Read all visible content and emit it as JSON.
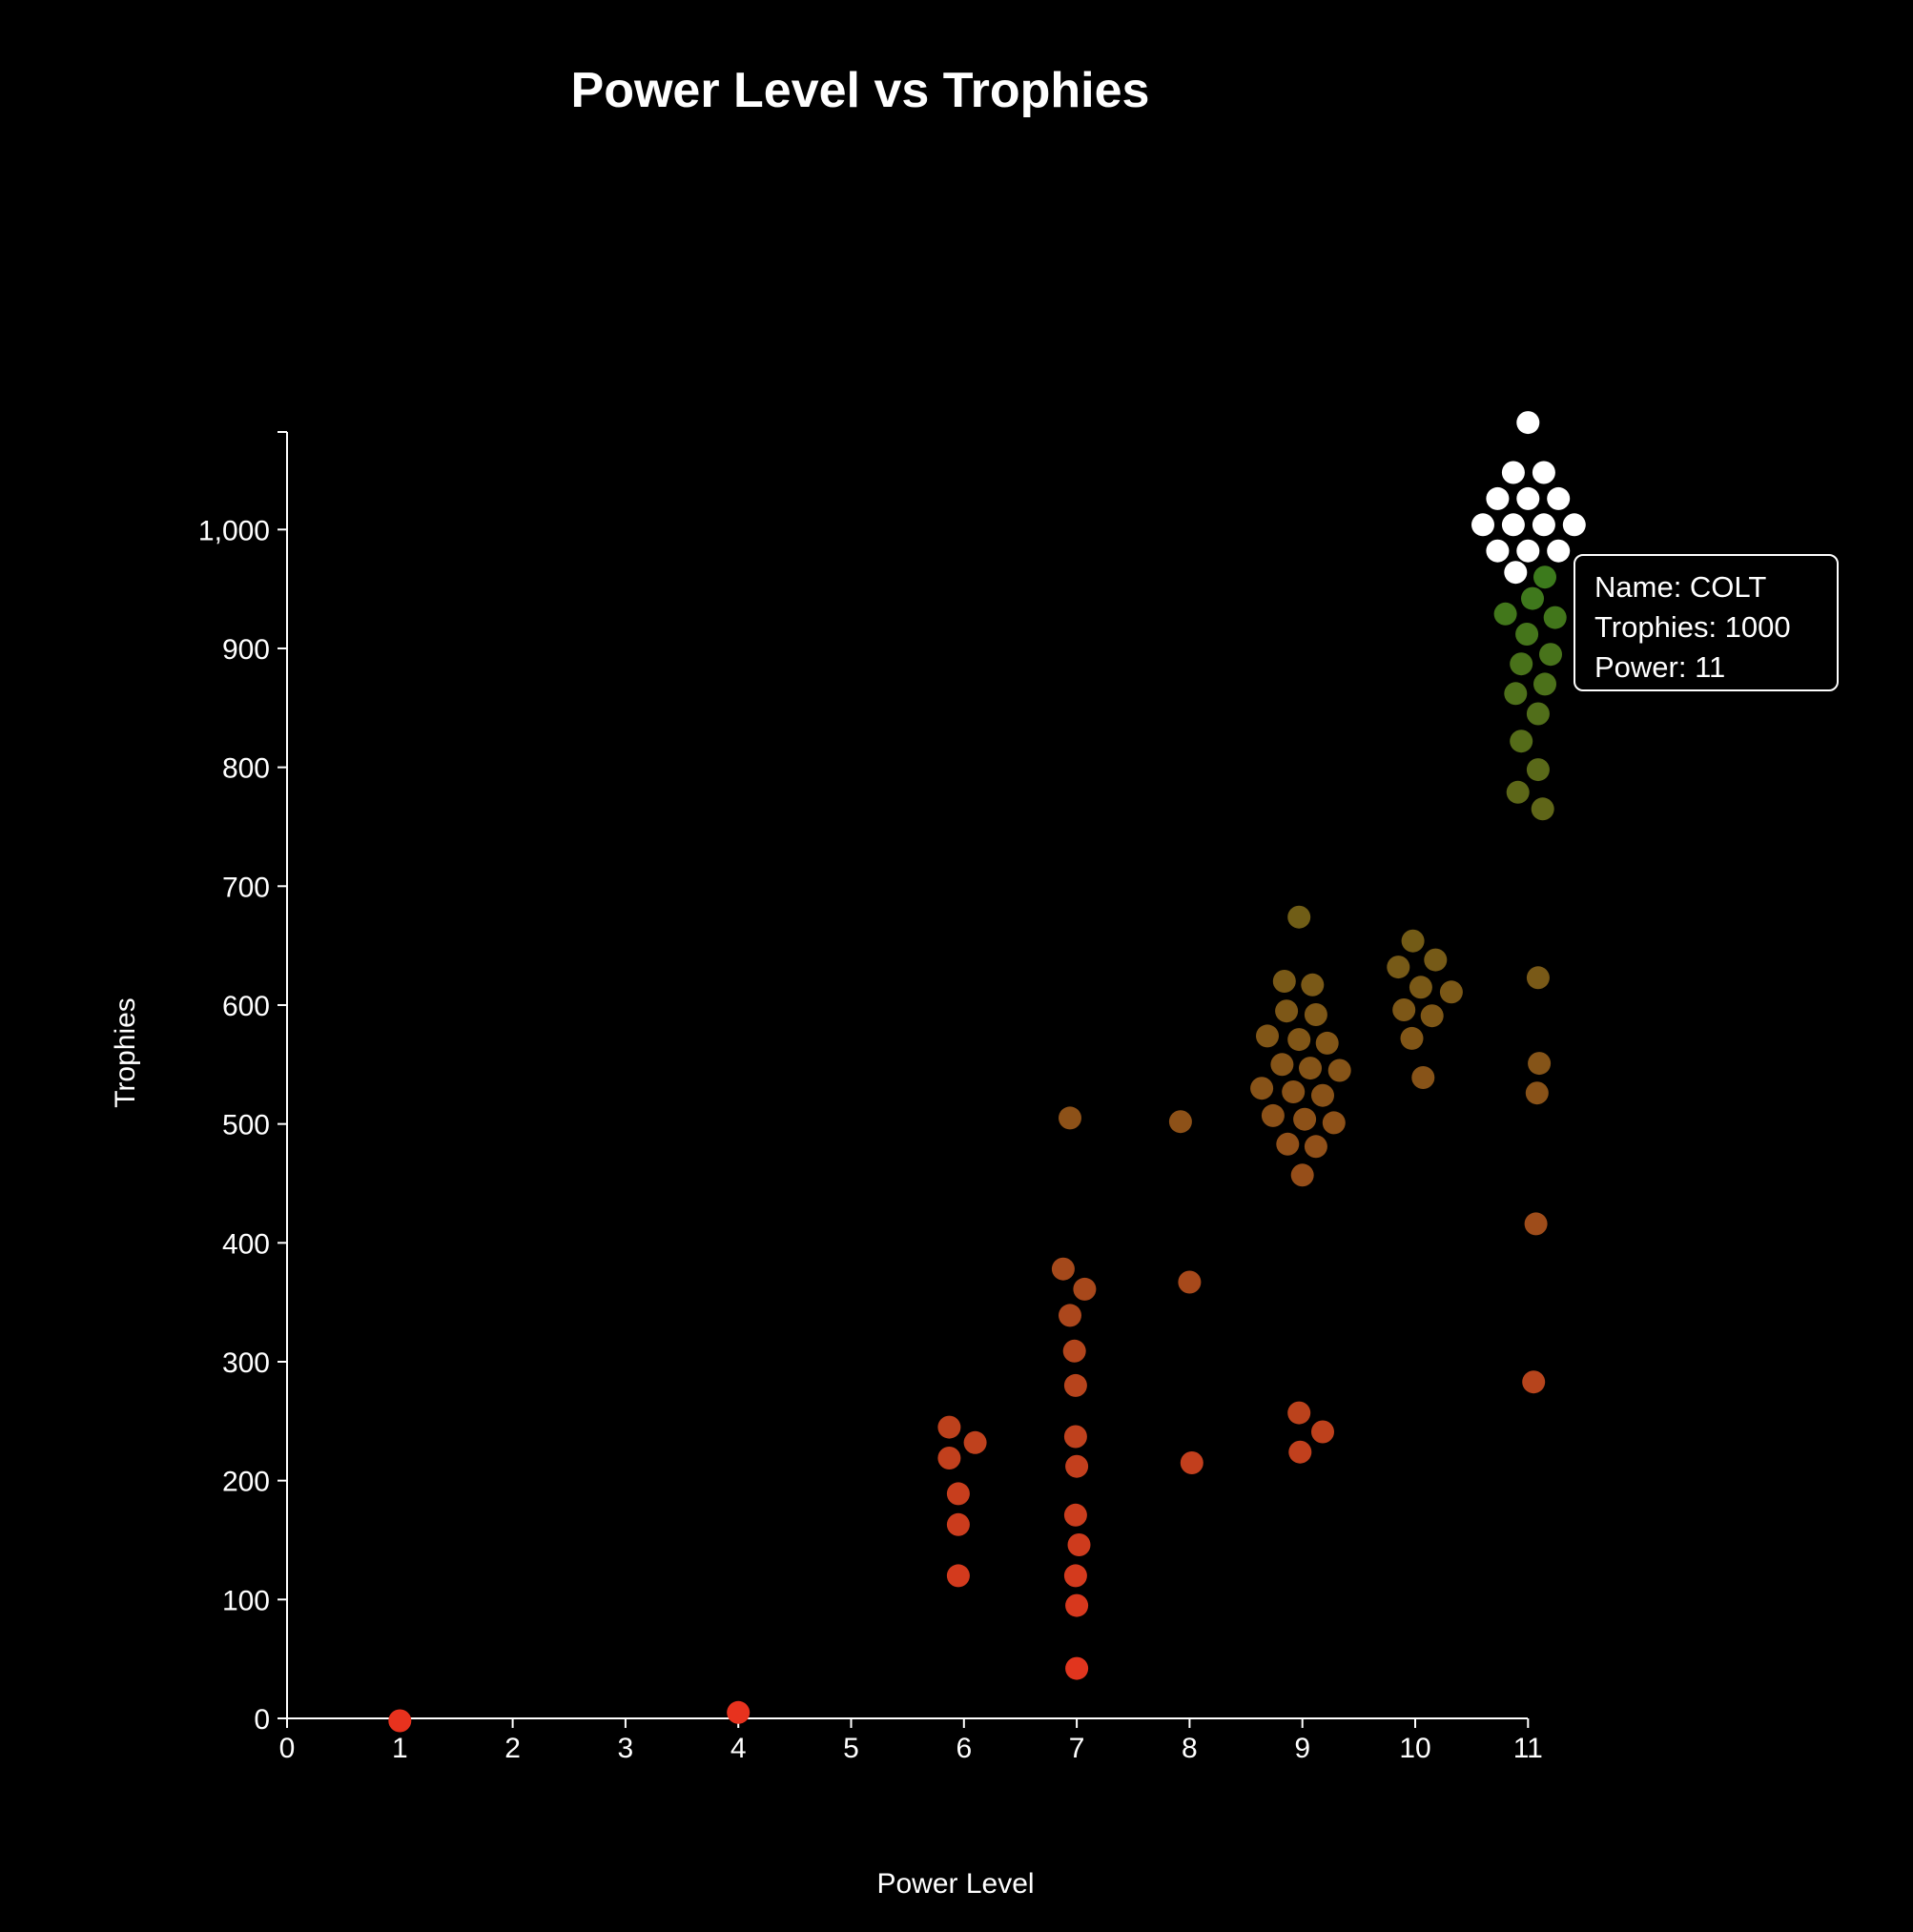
{
  "chart_data": {
    "type": "scatter",
    "title": "Power Level vs Trophies",
    "xlabel": "Power Level",
    "ylabel": "Trophies",
    "xlim": [
      0,
      11
    ],
    "ylim": [
      0,
      1090
    ],
    "x_ticks": [
      "0",
      "1",
      "2",
      "3",
      "4",
      "5",
      "6",
      "7",
      "8",
      "9",
      "10",
      "11"
    ],
    "y_ticks": [
      "0",
      "100",
      "200",
      "300",
      "400",
      "500",
      "600",
      "700",
      "800",
      "900",
      "1,000"
    ],
    "grid": false,
    "color_scale": {
      "low": "#e8321e",
      "mid_low": "#b0461c",
      "mid": "#8a5218",
      "mid_high": "#6f5d16",
      "high": "#3c7a1c",
      "top": "#ffffff"
    },
    "points": [
      {
        "x": 1.0,
        "y": -2
      },
      {
        "x": 4.0,
        "y": 5
      },
      {
        "x": 5.87,
        "y": 245
      },
      {
        "x": 6.1,
        "y": 232
      },
      {
        "x": 5.87,
        "y": 219
      },
      {
        "x": 5.95,
        "y": 189
      },
      {
        "x": 5.95,
        "y": 163
      },
      {
        "x": 5.95,
        "y": 120
      },
      {
        "x": 6.94,
        "y": 505
      },
      {
        "x": 6.88,
        "y": 378
      },
      {
        "x": 7.07,
        "y": 361
      },
      {
        "x": 6.94,
        "y": 339
      },
      {
        "x": 6.98,
        "y": 309
      },
      {
        "x": 6.99,
        "y": 280
      },
      {
        "x": 6.99,
        "y": 237
      },
      {
        "x": 7.0,
        "y": 212
      },
      {
        "x": 6.99,
        "y": 171
      },
      {
        "x": 7.02,
        "y": 146
      },
      {
        "x": 6.99,
        "y": 120
      },
      {
        "x": 7.0,
        "y": 95
      },
      {
        "x": 7.0,
        "y": 42
      },
      {
        "x": 7.92,
        "y": 502
      },
      {
        "x": 8.0,
        "y": 367
      },
      {
        "x": 8.02,
        "y": 215
      },
      {
        "x": 8.97,
        "y": 674
      },
      {
        "x": 8.84,
        "y": 620
      },
      {
        "x": 9.09,
        "y": 617
      },
      {
        "x": 8.86,
        "y": 595
      },
      {
        "x": 9.12,
        "y": 592
      },
      {
        "x": 8.69,
        "y": 574
      },
      {
        "x": 8.97,
        "y": 571
      },
      {
        "x": 9.22,
        "y": 568
      },
      {
        "x": 8.82,
        "y": 550
      },
      {
        "x": 9.07,
        "y": 547
      },
      {
        "x": 9.33,
        "y": 545
      },
      {
        "x": 8.64,
        "y": 530
      },
      {
        "x": 8.92,
        "y": 527
      },
      {
        "x": 9.18,
        "y": 524
      },
      {
        "x": 8.74,
        "y": 507
      },
      {
        "x": 9.02,
        "y": 504
      },
      {
        "x": 9.28,
        "y": 501
      },
      {
        "x": 8.87,
        "y": 483
      },
      {
        "x": 9.12,
        "y": 481
      },
      {
        "x": 9.0,
        "y": 457
      },
      {
        "x": 8.97,
        "y": 257
      },
      {
        "x": 9.18,
        "y": 241
      },
      {
        "x": 8.98,
        "y": 224
      },
      {
        "x": 9.98,
        "y": 654
      },
      {
        "x": 10.18,
        "y": 638
      },
      {
        "x": 9.85,
        "y": 632
      },
      {
        "x": 10.05,
        "y": 615
      },
      {
        "x": 10.32,
        "y": 611
      },
      {
        "x": 9.9,
        "y": 596
      },
      {
        "x": 10.15,
        "y": 591
      },
      {
        "x": 9.97,
        "y": 572
      },
      {
        "x": 10.07,
        "y": 539
      },
      {
        "x": 11.0,
        "y": 1090
      },
      {
        "x": 10.87,
        "y": 1048
      },
      {
        "x": 11.14,
        "y": 1048
      },
      {
        "x": 10.73,
        "y": 1026
      },
      {
        "x": 11.0,
        "y": 1026
      },
      {
        "x": 11.27,
        "y": 1026
      },
      {
        "x": 10.6,
        "y": 1004
      },
      {
        "x": 10.87,
        "y": 1004
      },
      {
        "x": 11.14,
        "y": 1004
      },
      {
        "x": 11.41,
        "y": 1004
      },
      {
        "x": 10.73,
        "y": 982
      },
      {
        "x": 11.0,
        "y": 982
      },
      {
        "x": 11.27,
        "y": 982
      },
      {
        "x": 11.15,
        "y": 960
      },
      {
        "x": 10.89,
        "y": 964
      },
      {
        "x": 11.04,
        "y": 942
      },
      {
        "x": 10.8,
        "y": 929
      },
      {
        "x": 11.24,
        "y": 926
      },
      {
        "x": 10.99,
        "y": 912
      },
      {
        "x": 11.2,
        "y": 895
      },
      {
        "x": 10.94,
        "y": 887
      },
      {
        "x": 11.15,
        "y": 870
      },
      {
        "x": 10.89,
        "y": 862
      },
      {
        "x": 11.09,
        "y": 845
      },
      {
        "x": 10.94,
        "y": 822
      },
      {
        "x": 11.09,
        "y": 798
      },
      {
        "x": 10.91,
        "y": 779
      },
      {
        "x": 11.13,
        "y": 765
      },
      {
        "x": 11.09,
        "y": 623
      },
      {
        "x": 11.1,
        "y": 551
      },
      {
        "x": 11.08,
        "y": 526
      },
      {
        "x": 11.07,
        "y": 416
      },
      {
        "x": 11.05,
        "y": 283
      }
    ]
  },
  "tooltip": {
    "name_line": "Name: COLT",
    "trophies_line": "Trophies: 1000",
    "power_line": "Power: 11"
  }
}
